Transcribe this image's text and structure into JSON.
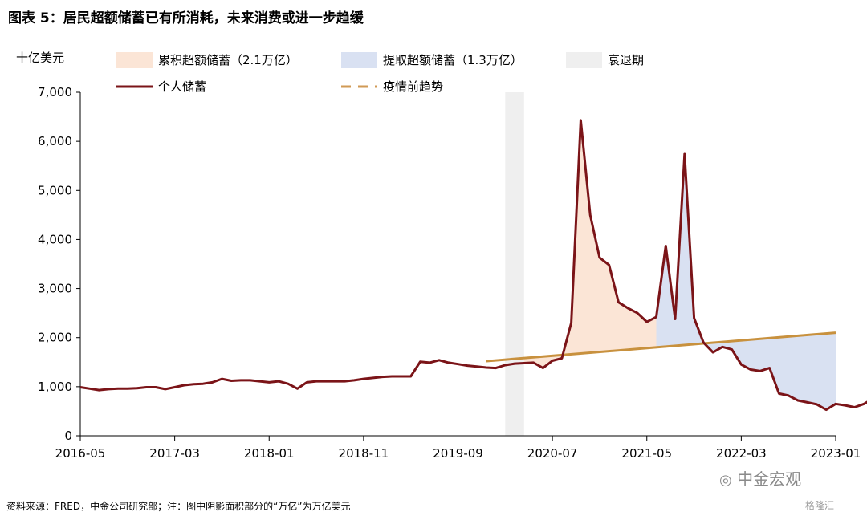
{
  "title": "图表 5：居民超额储蓄已有所消耗，未来消费或进一步趋缓",
  "source": "资料来源：FRED，中金公司研究部；注：图中阴影面积部分的“万亿”为万亿美元",
  "watermark": "中金宏观",
  "watermark2": "格隆汇",
  "chart_data": {
    "type": "line",
    "ylabel": "十亿美元",
    "ylim": [
      0,
      7000
    ],
    "yticks": [
      0,
      1000,
      2000,
      3000,
      4000,
      5000,
      6000,
      7000
    ],
    "ytick_labels": [
      "0",
      "1,000",
      "2,000",
      "3,000",
      "4,000",
      "5,000",
      "6,000",
      "7,000"
    ],
    "x_start": "2016-05",
    "x_end": "2023-01",
    "xticks": [
      "2016-05",
      "2017-03",
      "2018-01",
      "2018-11",
      "2019-09",
      "2020-07",
      "2021-05",
      "2022-03",
      "2023-01"
    ],
    "recession": {
      "name": "衰退期",
      "start": "2020-02",
      "end": "2020-04"
    },
    "legend": [
      {
        "name": "累积超额储蓄（2.1万亿）",
        "kind": "area",
        "color": "#fbe5d6"
      },
      {
        "name": "提取超额储蓄（1.3万亿）",
        "kind": "area",
        "color": "#d9e1f2"
      },
      {
        "name": "衰退期",
        "kind": "area",
        "color": "#efefef"
      },
      {
        "name": "个人储蓄",
        "kind": "line",
        "color": "#7b1418"
      },
      {
        "name": "疫情前趋势",
        "kind": "dashed",
        "color": "#d09a55"
      }
    ],
    "trend": {
      "name": "疫情前趋势",
      "color": "#c8913e",
      "points": [
        [
          "2019-12",
          1520
        ],
        [
          "2023-01",
          2100
        ]
      ]
    },
    "series": [
      {
        "name": "个人储蓄",
        "color": "#7b1418",
        "start": "2016-05",
        "values": [
          990,
          960,
          930,
          950,
          960,
          960,
          970,
          990,
          990,
          950,
          990,
          1030,
          1050,
          1060,
          1090,
          1160,
          1120,
          1130,
          1130,
          1110,
          1090,
          1110,
          1060,
          960,
          1090,
          1110,
          1110,
          1110,
          1110,
          1130,
          1160,
          1180,
          1200,
          1210,
          1210,
          1210,
          1510,
          1490,
          1540,
          1490,
          1460,
          1430,
          1410,
          1390,
          1380,
          1440,
          1470,
          1480,
          1490,
          1380,
          1530,
          1580,
          2300,
          6430,
          4500,
          3630,
          3480,
          2720,
          2600,
          2500,
          2320,
          2420,
          3870,
          2380,
          5740,
          2400,
          1900,
          1700,
          1810,
          1760,
          1450,
          1350,
          1320,
          1380,
          860,
          820,
          720,
          680,
          640,
          530,
          650,
          620,
          580,
          650,
          760,
          860,
          920
        ]
      }
    ],
    "areas": [
      {
        "name": "累积超额储蓄（2.1万亿）",
        "start": "2020-02",
        "end": "2021-06"
      },
      {
        "name": "提取超额储蓄（1.3万亿）",
        "start": "2021-06",
        "end": "2023-01"
      }
    ]
  }
}
